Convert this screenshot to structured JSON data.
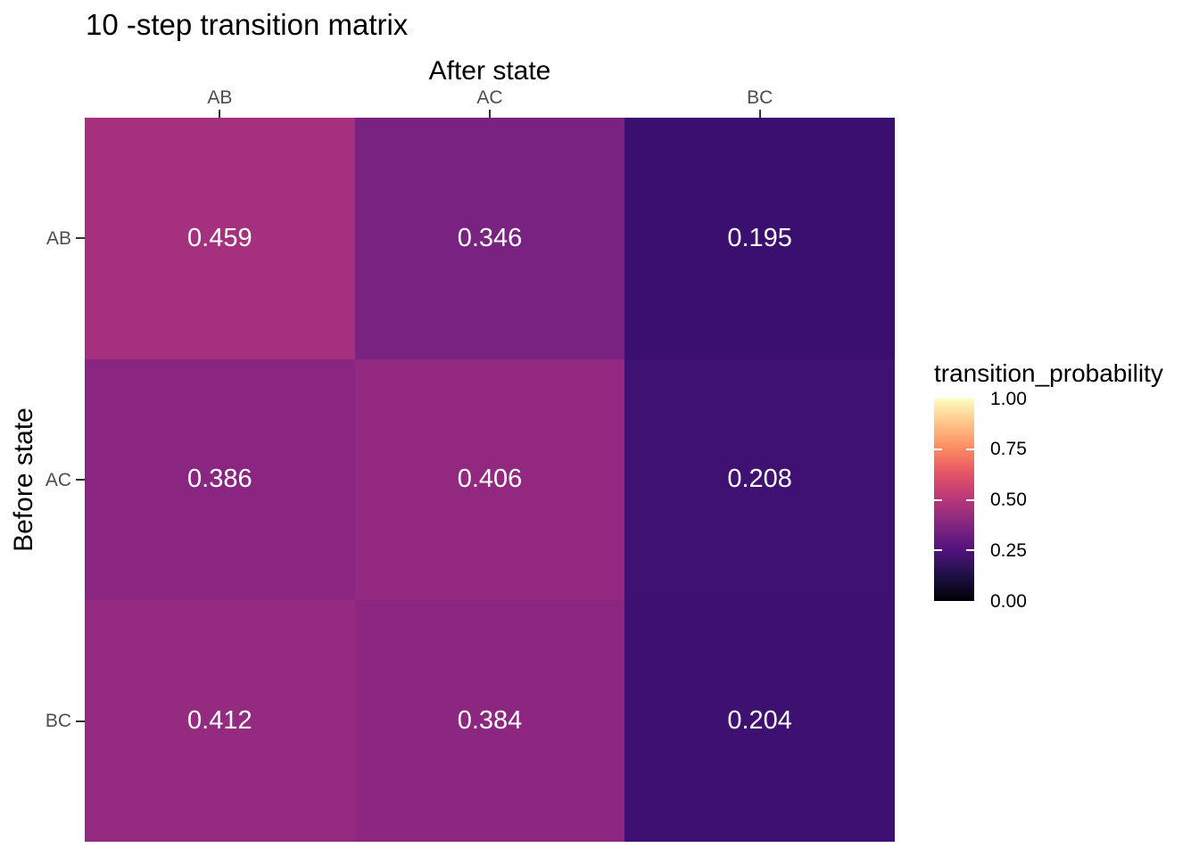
{
  "chart_data": {
    "type": "heatmap",
    "title": "10 -step transition matrix",
    "xlabel": "After state",
    "ylabel": "Before state",
    "x_categories": [
      "AB",
      "AC",
      "BC"
    ],
    "y_categories": [
      "AB",
      "AC",
      "BC"
    ],
    "series": [
      {
        "name": "AB",
        "values": [
          0.459,
          0.346,
          0.195
        ]
      },
      {
        "name": "AC",
        "values": [
          0.386,
          0.406,
          0.208
        ]
      },
      {
        "name": "BC",
        "values": [
          0.412,
          0.384,
          0.204
        ]
      }
    ],
    "cell_labels": [
      [
        "0.459",
        "0.346",
        "0.195"
      ],
      [
        "0.386",
        "0.406",
        "0.208"
      ],
      [
        "0.412",
        "0.384",
        "0.204"
      ]
    ],
    "cell_colors": [
      [
        "#A5317E",
        "#7A2282",
        "#3B0F70"
      ],
      [
        "#8A2681",
        "#922880",
        "#3F1173"
      ],
      [
        "#952B80",
        "#8C2681",
        "#3E1071"
      ]
    ],
    "value_range": [
      0,
      1
    ],
    "grid": false,
    "background": "#FFFFFF",
    "colors": {
      "axis_text": "#4D4D4D",
      "tick_mark": "#333333",
      "title_text": "#000000",
      "cell_text": "#FFFFFF"
    },
    "legend": {
      "title": "transition_probability",
      "position": "right",
      "colormap": "magma",
      "tick_labels": [
        "1.00",
        "0.75",
        "0.50",
        "0.25",
        "0.00"
      ],
      "tick_values": [
        1.0,
        0.75,
        0.5,
        0.25,
        0.0
      ],
      "gradient_stops": [
        {
          "t": 0.0,
          "color": "#000004"
        },
        {
          "t": 0.125,
          "color": "#1D1147"
        },
        {
          "t": 0.25,
          "color": "#51127C"
        },
        {
          "t": 0.375,
          "color": "#822681"
        },
        {
          "t": 0.5,
          "color": "#B73779"
        },
        {
          "t": 0.625,
          "color": "#E35266"
        },
        {
          "t": 0.75,
          "color": "#FC8961"
        },
        {
          "t": 0.875,
          "color": "#FEC287"
        },
        {
          "t": 1.0,
          "color": "#FCFDBF"
        }
      ]
    }
  }
}
